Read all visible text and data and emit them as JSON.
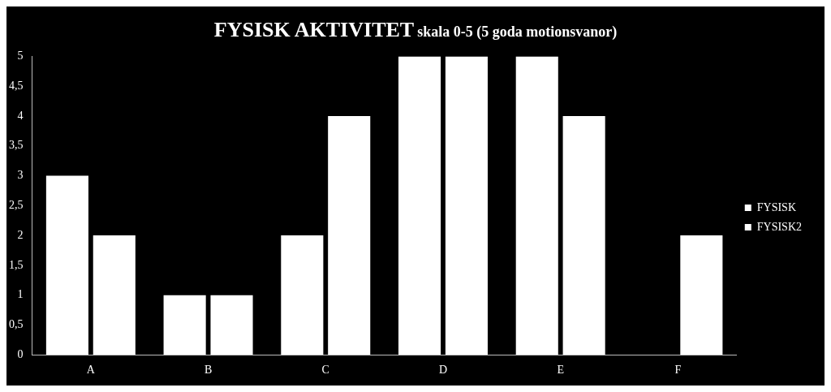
{
  "chart_data": {
    "type": "bar",
    "title": "FYSISK AKTIVITET",
    "subtitle": "skala 0-5 (5 goda motionsvanor)",
    "categories": [
      "A",
      "B",
      "C",
      "D",
      "E",
      "F"
    ],
    "series": [
      {
        "name": "FYSISK",
        "color": "#ffffff",
        "values": [
          3,
          1,
          2,
          5,
          5,
          0
        ]
      },
      {
        "name": "FYSISK2",
        "color": "#ffffff",
        "values": [
          2,
          1,
          4,
          5,
          4,
          2
        ]
      }
    ],
    "ylim": [
      0,
      5
    ],
    "yticks": [
      0,
      {
        "value": 0.5,
        "label": "0,5"
      },
      1,
      {
        "value": 1.5,
        "label": "1,5"
      },
      2,
      {
        "value": 2.5,
        "label": "2,5"
      },
      3,
      {
        "value": 3.5,
        "label": "3,5"
      },
      4,
      {
        "value": 4.5,
        "label": "4,5"
      },
      5
    ],
    "grid": false,
    "legend": "right"
  }
}
